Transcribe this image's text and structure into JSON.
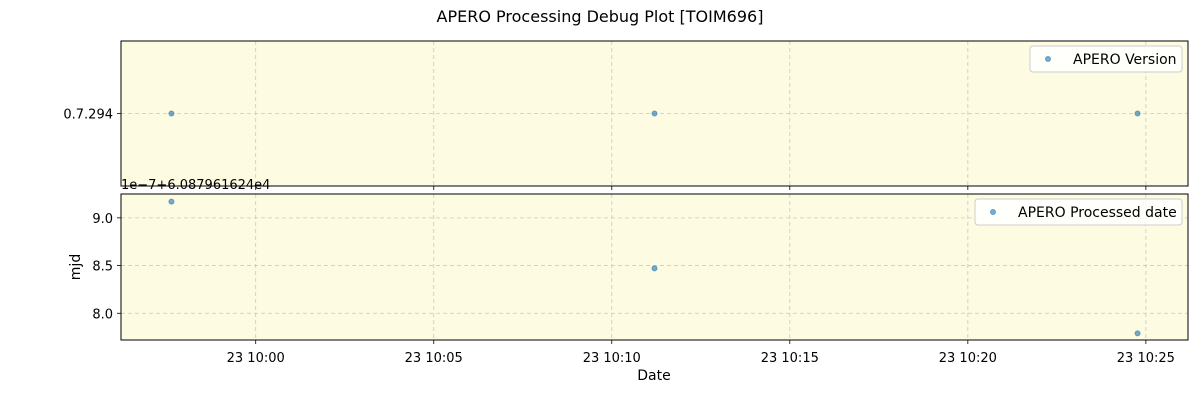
{
  "figure": {
    "title": "APERO Processing Debug Plot [TOIM696]"
  },
  "chart_data": [
    {
      "type": "scatter",
      "legend": "APERO Version",
      "legend_position": "top-right",
      "grid": true,
      "xlabel": "",
      "ylabel": "",
      "yticks": [
        {
          "value": 0.5,
          "label": "0.7.294"
        }
      ],
      "ylim": [
        0,
        1
      ],
      "x": [
        "23 09:57:38",
        "23 10:11:12",
        "23 10:24:46"
      ],
      "y": [
        0.5,
        0.5,
        0.5
      ]
    },
    {
      "type": "scatter",
      "legend": "APERO Processed date",
      "legend_position": "top-right",
      "grid": true,
      "xlabel": "Date",
      "ylabel": "mjd",
      "offset_label": "1e−7+6.087961624e4",
      "yticks": [
        {
          "value": 8.0,
          "label": "8.0"
        },
        {
          "value": 8.5,
          "label": "8.5"
        },
        {
          "value": 9.0,
          "label": "9.0"
        }
      ],
      "ylim": [
        7.72,
        9.25
      ],
      "x": [
        "23 09:57:38",
        "23 10:11:12",
        "23 10:24:46"
      ],
      "y": [
        9.17,
        8.47,
        7.79
      ]
    }
  ],
  "x_axis": {
    "ticks": [
      "23 10:00",
      "23 10:05",
      "23 10:10",
      "23 10:15",
      "23 10:20",
      "23 10:25"
    ],
    "xlim": [
      "23 09:56:13",
      "23 10:26:11"
    ]
  }
}
